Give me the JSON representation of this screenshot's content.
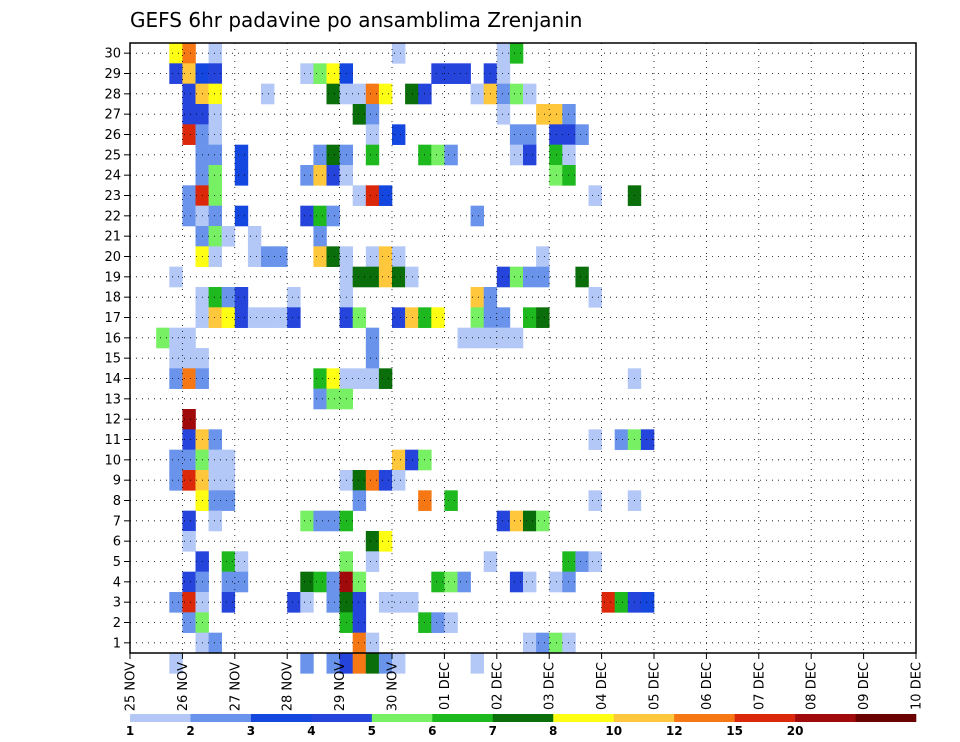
{
  "chart_data": {
    "type": "heatmap",
    "title": "GEFS 6hr padavine po ansamblima Zrenjanin",
    "y_labels": [
      "1",
      "2",
      "3",
      "4",
      "5",
      "6",
      "7",
      "8",
      "9",
      "10",
      "11",
      "12",
      "13",
      "14",
      "15",
      "16",
      "17",
      "18",
      "19",
      "20",
      "21",
      "22",
      "23",
      "24",
      "25",
      "26",
      "27",
      "28",
      "29",
      "30"
    ],
    "x_labels": [
      "25 NOV",
      "26 NOV",
      "27 NOV",
      "28 NOV",
      "29 NOV",
      "30 NOV",
      "01 DEC",
      "02 DEC",
      "03 DEC",
      "04 DEC",
      "05 DEC",
      "06 DEC",
      "07 DEC",
      "08 DEC",
      "09 DEC",
      "10 DEC"
    ],
    "grid": true,
    "steps_per_day": 4,
    "legend": {
      "position": "bottom",
      "labels": [
        "1",
        "2",
        "3",
        "4",
        "5",
        "6",
        "7",
        "8",
        "10",
        "12",
        "15",
        "20"
      ],
      "colors": [
        "#b4c8f8",
        "#6a94ec",
        "#1446e0",
        "#2444dc",
        "#78f064",
        "#1eb91e",
        "#0a6e0a",
        "#ffff14",
        "#ffc83c",
        "#f57814",
        "#dc280a",
        "#a00a0a",
        "#6a0000"
      ]
    },
    "cells": [
      [
        3,
        30,
        7
      ],
      [
        4,
        30,
        9
      ],
      [
        6,
        30,
        0
      ],
      [
        20,
        30,
        0
      ],
      [
        28,
        30,
        0
      ],
      [
        29,
        30,
        5
      ],
      [
        3,
        29,
        3
      ],
      [
        4,
        29,
        8
      ],
      [
        5,
        29,
        2
      ],
      [
        6,
        29,
        3
      ],
      [
        13,
        29,
        0
      ],
      [
        14,
        29,
        4
      ],
      [
        15,
        29,
        7
      ],
      [
        16,
        29,
        2
      ],
      [
        23,
        29,
        3
      ],
      [
        24,
        29,
        3
      ],
      [
        25,
        29,
        3
      ],
      [
        27,
        29,
        3
      ],
      [
        28,
        29,
        0
      ],
      [
        4,
        28,
        3
      ],
      [
        5,
        28,
        8
      ],
      [
        6,
        28,
        7
      ],
      [
        10,
        28,
        0
      ],
      [
        15,
        28,
        6
      ],
      [
        16,
        28,
        0
      ],
      [
        17,
        28,
        0
      ],
      [
        18,
        28,
        9
      ],
      [
        19,
        28,
        7
      ],
      [
        21,
        28,
        6
      ],
      [
        22,
        28,
        3
      ],
      [
        26,
        28,
        0
      ],
      [
        27,
        28,
        8
      ],
      [
        28,
        28,
        1
      ],
      [
        29,
        28,
        4
      ],
      [
        30,
        28,
        0
      ],
      [
        4,
        27,
        3
      ],
      [
        5,
        27,
        3
      ],
      [
        6,
        27,
        0
      ],
      [
        17,
        27,
        6
      ],
      [
        18,
        27,
        1
      ],
      [
        28,
        27,
        0
      ],
      [
        31,
        27,
        8
      ],
      [
        32,
        27,
        8
      ],
      [
        33,
        27,
        1
      ],
      [
        4,
        26,
        10
      ],
      [
        5,
        26,
        1
      ],
      [
        6,
        26,
        0
      ],
      [
        18,
        26,
        0
      ],
      [
        20,
        26,
        2
      ],
      [
        29,
        26,
        1
      ],
      [
        30,
        26,
        1
      ],
      [
        32,
        26,
        3
      ],
      [
        33,
        26,
        3
      ],
      [
        34,
        26,
        1
      ],
      [
        5,
        25,
        1
      ],
      [
        6,
        25,
        1
      ],
      [
        8,
        25,
        2
      ],
      [
        14,
        25,
        1
      ],
      [
        15,
        25,
        6
      ],
      [
        16,
        25,
        1
      ],
      [
        18,
        25,
        5
      ],
      [
        22,
        25,
        5
      ],
      [
        23,
        25,
        4
      ],
      [
        24,
        25,
        1
      ],
      [
        29,
        25,
        0
      ],
      [
        30,
        25,
        3
      ],
      [
        32,
        25,
        5
      ],
      [
        33,
        25,
        0
      ],
      [
        5,
        24,
        1
      ],
      [
        6,
        24,
        4
      ],
      [
        8,
        24,
        2
      ],
      [
        13,
        24,
        1
      ],
      [
        14,
        24,
        8
      ],
      [
        15,
        24,
        3
      ],
      [
        16,
        24,
        0
      ],
      [
        32,
        24,
        4
      ],
      [
        33,
        24,
        5
      ],
      [
        4,
        23,
        1
      ],
      [
        5,
        23,
        10
      ],
      [
        6,
        23,
        4
      ],
      [
        17,
        23,
        0
      ],
      [
        18,
        23,
        10
      ],
      [
        19,
        23,
        2
      ],
      [
        35,
        23,
        0
      ],
      [
        38,
        23,
        6
      ],
      [
        4,
        22,
        1
      ],
      [
        5,
        22,
        0
      ],
      [
        6,
        22,
        1
      ],
      [
        8,
        22,
        2
      ],
      [
        13,
        22,
        3
      ],
      [
        14,
        22,
        5
      ],
      [
        15,
        22,
        1
      ],
      [
        26,
        22,
        1
      ],
      [
        5,
        21,
        1
      ],
      [
        6,
        21,
        4
      ],
      [
        7,
        21,
        0
      ],
      [
        9,
        21,
        0
      ],
      [
        14,
        21,
        1
      ],
      [
        5,
        20,
        7
      ],
      [
        6,
        20,
        0
      ],
      [
        9,
        20,
        0
      ],
      [
        10,
        20,
        1
      ],
      [
        11,
        20,
        1
      ],
      [
        14,
        20,
        8
      ],
      [
        15,
        20,
        6
      ],
      [
        16,
        20,
        0
      ],
      [
        18,
        20,
        0
      ],
      [
        19,
        20,
        8
      ],
      [
        20,
        20,
        0
      ],
      [
        31,
        20,
        0
      ],
      [
        3,
        19,
        0
      ],
      [
        16,
        19,
        0
      ],
      [
        17,
        19,
        6
      ],
      [
        18,
        19,
        6
      ],
      [
        19,
        19,
        8
      ],
      [
        20,
        19,
        6
      ],
      [
        21,
        19,
        0
      ],
      [
        28,
        19,
        3
      ],
      [
        29,
        19,
        4
      ],
      [
        30,
        19,
        1
      ],
      [
        31,
        19,
        1
      ],
      [
        34,
        19,
        6
      ],
      [
        5,
        18,
        0
      ],
      [
        6,
        18,
        5
      ],
      [
        7,
        18,
        1
      ],
      [
        8,
        18,
        3
      ],
      [
        12,
        18,
        0
      ],
      [
        16,
        18,
        0
      ],
      [
        26,
        18,
        8
      ],
      [
        27,
        18,
        1
      ],
      [
        35,
        18,
        0
      ],
      [
        5,
        17,
        0
      ],
      [
        6,
        17,
        8
      ],
      [
        7,
        17,
        7
      ],
      [
        8,
        17,
        3
      ],
      [
        9,
        17,
        0
      ],
      [
        10,
        17,
        0
      ],
      [
        11,
        17,
        0
      ],
      [
        12,
        17,
        3
      ],
      [
        16,
        17,
        3
      ],
      [
        17,
        17,
        4
      ],
      [
        20,
        17,
        3
      ],
      [
        21,
        17,
        8
      ],
      [
        22,
        17,
        5
      ],
      [
        23,
        17,
        7
      ],
      [
        26,
        17,
        4
      ],
      [
        27,
        17,
        1
      ],
      [
        28,
        17,
        1
      ],
      [
        30,
        17,
        5
      ],
      [
        31,
        17,
        6
      ],
      [
        2,
        16,
        4
      ],
      [
        3,
        16,
        0
      ],
      [
        4,
        16,
        0
      ],
      [
        18,
        16,
        1
      ],
      [
        25,
        16,
        0
      ],
      [
        26,
        16,
        0
      ],
      [
        27,
        16,
        0
      ],
      [
        28,
        16,
        0
      ],
      [
        29,
        16,
        0
      ],
      [
        3,
        15,
        0
      ],
      [
        4,
        15,
        0
      ],
      [
        5,
        15,
        0
      ],
      [
        18,
        15,
        1
      ],
      [
        3,
        14,
        1
      ],
      [
        4,
        14,
        9
      ],
      [
        5,
        14,
        1
      ],
      [
        14,
        14,
        5
      ],
      [
        15,
        14,
        7
      ],
      [
        16,
        14,
        0
      ],
      [
        17,
        14,
        0
      ],
      [
        18,
        14,
        0
      ],
      [
        19,
        14,
        6
      ],
      [
        38,
        14,
        0
      ],
      [
        14,
        13,
        1
      ],
      [
        15,
        13,
        4
      ],
      [
        16,
        13,
        4
      ],
      [
        4,
        12,
        11
      ],
      [
        4,
        11,
        3
      ],
      [
        5,
        11,
        8
      ],
      [
        6,
        11,
        1
      ],
      [
        35,
        11,
        0
      ],
      [
        37,
        11,
        1
      ],
      [
        38,
        11,
        4
      ],
      [
        39,
        11,
        3
      ],
      [
        3,
        10,
        1
      ],
      [
        4,
        10,
        1
      ],
      [
        5,
        10,
        4
      ],
      [
        6,
        10,
        0
      ],
      [
        7,
        10,
        0
      ],
      [
        20,
        10,
        8
      ],
      [
        21,
        10,
        3
      ],
      [
        22,
        10,
        4
      ],
      [
        3,
        9,
        1
      ],
      [
        4,
        9,
        10
      ],
      [
        5,
        9,
        8
      ],
      [
        6,
        9,
        0
      ],
      [
        7,
        9,
        0
      ],
      [
        16,
        9,
        0
      ],
      [
        17,
        9,
        6
      ],
      [
        18,
        9,
        9
      ],
      [
        19,
        9,
        3
      ],
      [
        20,
        9,
        0
      ],
      [
        5,
        8,
        7
      ],
      [
        6,
        8,
        1
      ],
      [
        7,
        8,
        1
      ],
      [
        17,
        8,
        1
      ],
      [
        22,
        8,
        9
      ],
      [
        24,
        8,
        5
      ],
      [
        35,
        8,
        0
      ],
      [
        38,
        8,
        0
      ],
      [
        4,
        7,
        3
      ],
      [
        6,
        7,
        0
      ],
      [
        13,
        7,
        4
      ],
      [
        14,
        7,
        1
      ],
      [
        15,
        7,
        1
      ],
      [
        16,
        7,
        5
      ],
      [
        28,
        7,
        3
      ],
      [
        29,
        7,
        8
      ],
      [
        30,
        7,
        6
      ],
      [
        31,
        7,
        4
      ],
      [
        4,
        6,
        0
      ],
      [
        18,
        6,
        6
      ],
      [
        19,
        6,
        7
      ],
      [
        5,
        5,
        3
      ],
      [
        7,
        5,
        5
      ],
      [
        8,
        5,
        0
      ],
      [
        16,
        5,
        4
      ],
      [
        18,
        5,
        0
      ],
      [
        27,
        5,
        0
      ],
      [
        33,
        5,
        5
      ],
      [
        34,
        5,
        1
      ],
      [
        35,
        5,
        0
      ],
      [
        4,
        4,
        3
      ],
      [
        5,
        4,
        1
      ],
      [
        7,
        4,
        1
      ],
      [
        8,
        4,
        1
      ],
      [
        13,
        4,
        6
      ],
      [
        14,
        4,
        5
      ],
      [
        15,
        4,
        1
      ],
      [
        16,
        4,
        11
      ],
      [
        17,
        4,
        4
      ],
      [
        23,
        4,
        5
      ],
      [
        24,
        4,
        4
      ],
      [
        25,
        4,
        1
      ],
      [
        29,
        4,
        3
      ],
      [
        30,
        4,
        0
      ],
      [
        32,
        4,
        0
      ],
      [
        33,
        4,
        1
      ],
      [
        3,
        3,
        1
      ],
      [
        4,
        3,
        10
      ],
      [
        5,
        3,
        0
      ],
      [
        7,
        3,
        3
      ],
      [
        12,
        3,
        3
      ],
      [
        13,
        3,
        0
      ],
      [
        15,
        3,
        1
      ],
      [
        16,
        3,
        6
      ],
      [
        17,
        3,
        3
      ],
      [
        19,
        3,
        0
      ],
      [
        20,
        3,
        0
      ],
      [
        21,
        3,
        0
      ],
      [
        36,
        3,
        10
      ],
      [
        37,
        3,
        5
      ],
      [
        38,
        3,
        3
      ],
      [
        39,
        3,
        2
      ],
      [
        4,
        2,
        1
      ],
      [
        5,
        2,
        4
      ],
      [
        16,
        2,
        5
      ],
      [
        17,
        2,
        3
      ],
      [
        22,
        2,
        5
      ],
      [
        23,
        2,
        1
      ],
      [
        24,
        2,
        0
      ],
      [
        5,
        1,
        0
      ],
      [
        6,
        1,
        1
      ],
      [
        17,
        1,
        9
      ],
      [
        18,
        1,
        0
      ],
      [
        30,
        1,
        0
      ],
      [
        31,
        1,
        1
      ],
      [
        32,
        1,
        4
      ],
      [
        33,
        1,
        0
      ],
      [
        3,
        0,
        0
      ],
      [
        13,
        0,
        1
      ],
      [
        15,
        0,
        1
      ],
      [
        16,
        0,
        3
      ],
      [
        17,
        0,
        9
      ],
      [
        18,
        0,
        6
      ],
      [
        19,
        0,
        1
      ],
      [
        20,
        0,
        0
      ],
      [
        26,
        0,
        0
      ]
    ]
  }
}
